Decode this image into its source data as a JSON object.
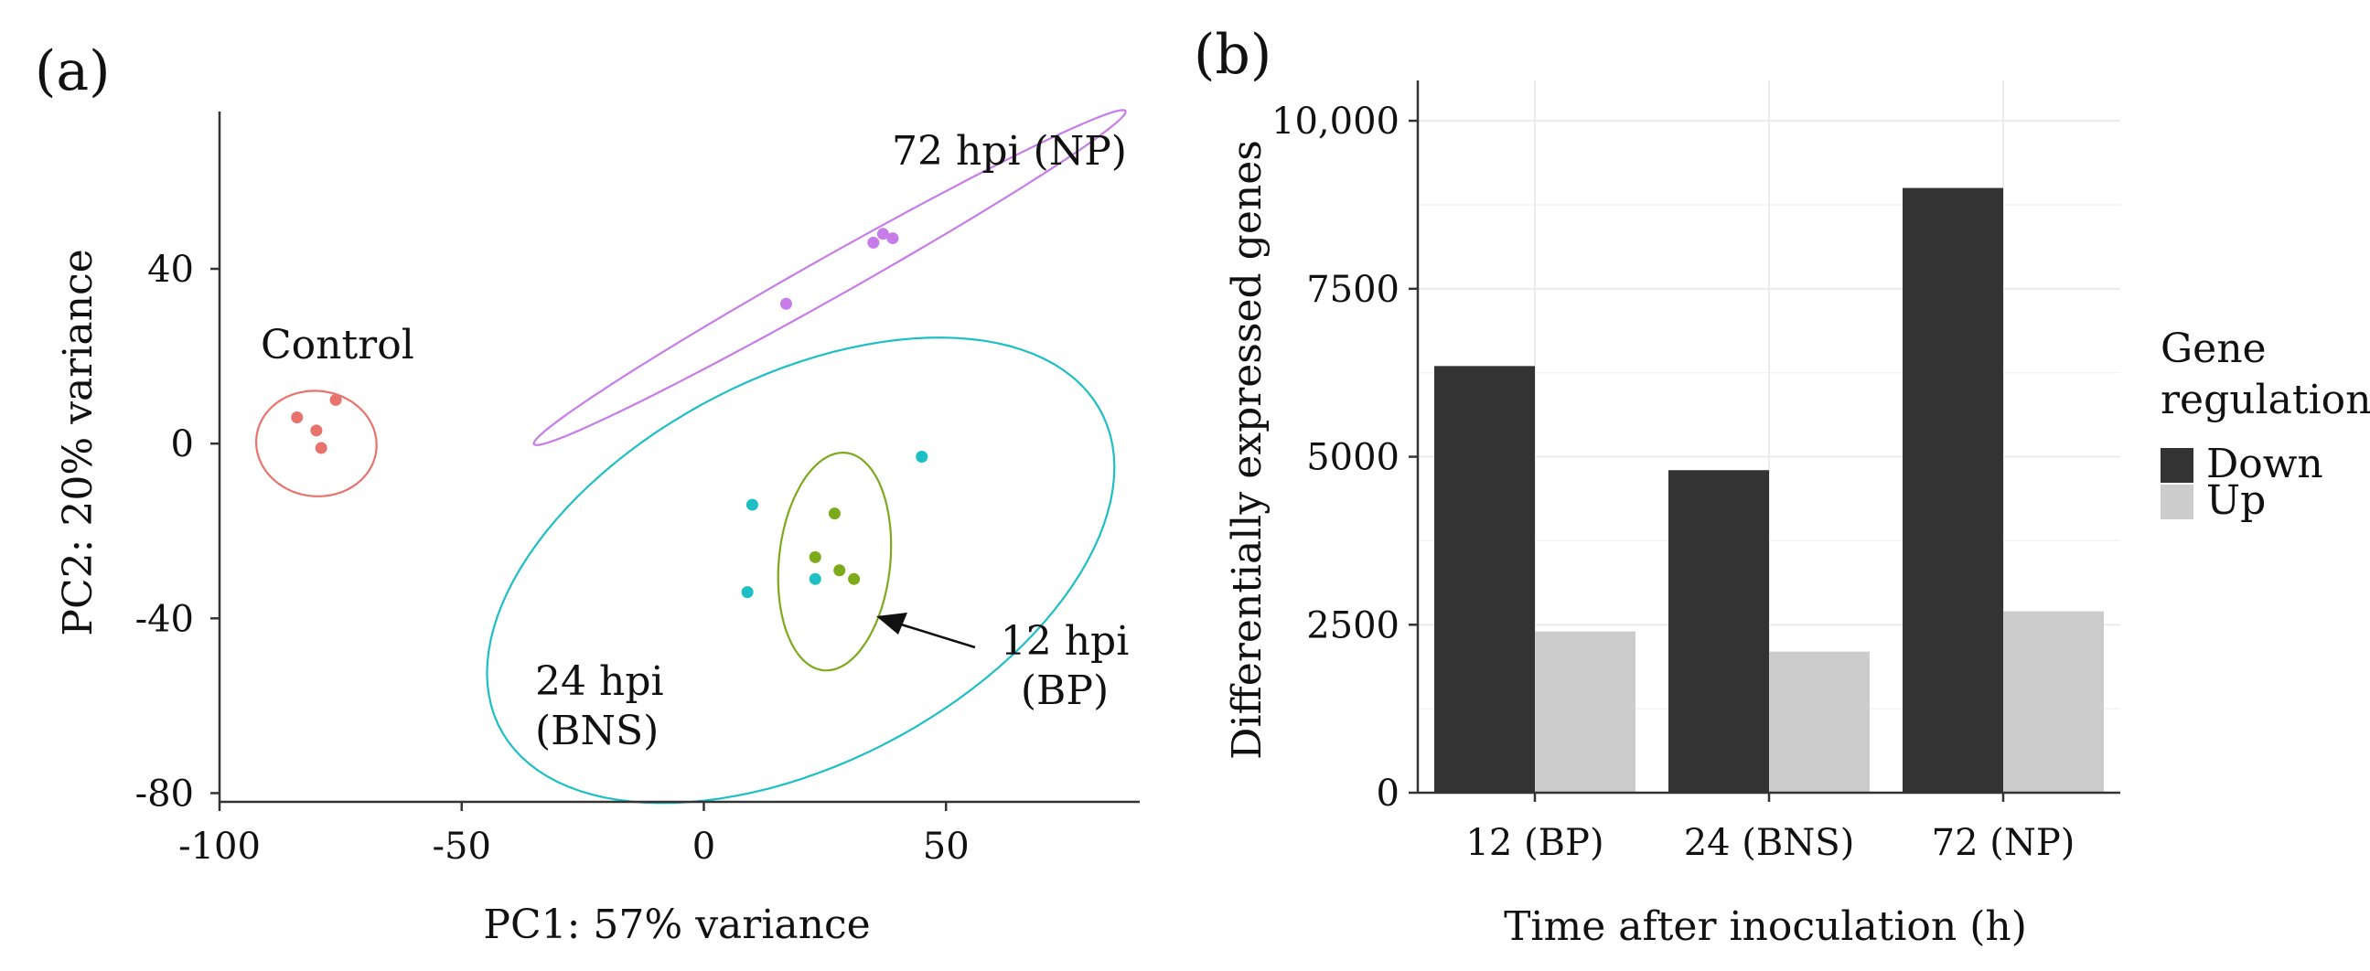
{
  "chart_data": [
    {
      "type": "scatter",
      "panel_label": "(a)",
      "xlabel": "PC1: 57% variance",
      "ylabel": "PC2: 20% variance",
      "xlim": [
        -100,
        90
      ],
      "ylim": [
        -82,
        76
      ],
      "xticks": [
        -100,
        -50,
        0,
        50
      ],
      "xtick_labels": [
        "-100",
        "-50",
        "0",
        "50"
      ],
      "yticks": [
        40,
        0,
        -40,
        -80
      ],
      "ytick_labels": [
        "40",
        "0",
        "-40",
        "-80"
      ],
      "groups": [
        {
          "name": "Control",
          "label": "Control",
          "color": "#e8736c",
          "points": [
            [
              -84,
              6
            ],
            [
              -76,
              10
            ],
            [
              -80,
              3
            ],
            [
              -79,
              -1
            ]
          ],
          "ellipse": {
            "cx": -80,
            "cy": 0,
            "rx": 12,
            "ry": 12.5,
            "angle": 68
          }
        },
        {
          "name": "72 hpi (NP)",
          "label": "72 hpi (NP)",
          "color": "#c77cea",
          "points": [
            [
              17,
              32
            ],
            [
              35,
              46
            ],
            [
              37,
              48
            ],
            [
              39,
              47
            ]
          ],
          "ellipse": {
            "cx": 26,
            "cy": 38,
            "rx": 72,
            "ry": 4.5,
            "angle": 32
          }
        },
        {
          "name": "24 hpi (BNS)",
          "label_lines": [
            "24 hpi",
            "(BNS)"
          ],
          "color": "#1bbfc4",
          "points": [
            [
              10,
              -14
            ],
            [
              45,
              -3
            ],
            [
              9,
              -34
            ],
            [
              23,
              -31
            ]
          ],
          "ellipse": {
            "cx": 20,
            "cy": -29,
            "rx": 72,
            "ry": 43,
            "angle": 33
          }
        },
        {
          "name": "12 hpi (BP)",
          "label_lines": [
            "12 hpi",
            "(BP)"
          ],
          "color": "#7caa1b",
          "points": [
            [
              27,
              -16
            ],
            [
              23,
              -26
            ],
            [
              28,
              -29
            ],
            [
              31,
              -31
            ]
          ],
          "ellipse": {
            "cx": 27,
            "cy": -27,
            "rx": 11.5,
            "ry": 25,
            "angle": -5
          }
        }
      ]
    },
    {
      "type": "bar",
      "panel_label": "(b)",
      "xlabel": "Time after inoculation (h)",
      "ylabel": "Differentially expressed genes",
      "categories": [
        "12 (BP)",
        "24 (BNS)",
        "72 (NP)"
      ],
      "ylim": [
        0,
        10600
      ],
      "yticks": [
        0,
        2500,
        5000,
        7500,
        10000
      ],
      "ytick_labels": [
        "0",
        "2500",
        "5000",
        "7500",
        "10,000"
      ],
      "series": [
        {
          "name": "Down",
          "color": "#333333",
          "values": [
            6350,
            4800,
            9000
          ]
        },
        {
          "name": "Up",
          "color": "#cccccc",
          "values": [
            2400,
            2100,
            2700
          ]
        }
      ],
      "legend": {
        "title_lines": [
          "Gene",
          "regulation"
        ],
        "entries": [
          "Down",
          "Up"
        ],
        "placement": "right"
      },
      "grid": true
    }
  ]
}
